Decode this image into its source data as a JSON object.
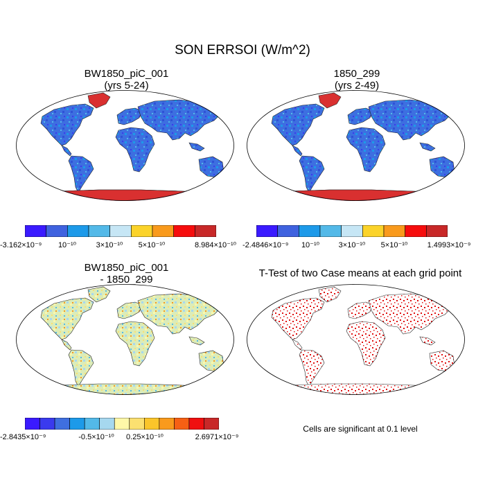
{
  "title": "SON ERRSOI (W/m^2)",
  "panels": [
    {
      "id": "case1",
      "title_line1": "BW1850_piC_001",
      "title_line2": "(yrs 5-24)",
      "colorbar_colors": [
        "#3a1aff",
        "#3f62df",
        "#1d9ae9",
        "#53b9e8",
        "#c6e6f5",
        "#fbd32a",
        "#f99a1c",
        "#f60d0d",
        "#c82828"
      ],
      "colorbar_labels": [
        "-3.162×10⁻⁹",
        "10⁻¹⁰",
        "3×10⁻¹⁰",
        "5×10⁻¹⁰",
        "8.984×10⁻¹⁰"
      ],
      "land_color": "#3d6fe0",
      "ice_color": "#d93030"
    },
    {
      "id": "case2",
      "title_line1": "1850_299",
      "title_line2": "(yrs 2-49)",
      "colorbar_colors": [
        "#3a1aff",
        "#3f62df",
        "#1d9ae9",
        "#53b9e8",
        "#c6e6f5",
        "#fbd32a",
        "#f99a1c",
        "#f60d0d",
        "#c82828"
      ],
      "colorbar_labels": [
        "-2.4846×10⁻⁹",
        "10⁻¹⁰",
        "3×10⁻¹⁰",
        "5×10⁻¹⁰",
        "1.4993×10⁻⁹"
      ],
      "land_color": "#3d6fe0",
      "ice_color": "#d93030"
    },
    {
      "id": "diff",
      "title_line1": "BW1850_piC_001",
      "title_line2": "- 1850_299",
      "colorbar_colors": [
        "#3a1aff",
        "#3a3aee",
        "#3f6fe0",
        "#1d9ae9",
        "#53b9e8",
        "#a6d8ef",
        "#fff8a8",
        "#fbe070",
        "#fbc52a",
        "#f99a1c",
        "#f66014",
        "#f01010",
        "#c82828"
      ],
      "colorbar_labels": [
        "-2.8435×10⁻⁹",
        "-0.5×10⁻¹⁰",
        "0.25×10⁻¹⁰",
        "2.6971×10⁻⁹"
      ],
      "land_color": "#dcecb8"
    },
    {
      "id": "ttest",
      "title_line1": "T-Test of two Case means at each grid point",
      "note": "Cells are significant at 0.1 level",
      "marker_color": "#e01010"
    }
  ],
  "chart_data": [
    {
      "type": "heatmap",
      "title": "BW1850_piC_001 (yrs 5-24)",
      "variable": "ERRSOI",
      "season": "SON",
      "units": "W/m^2",
      "range": [
        -3.162e-09,
        8.984e-10
      ],
      "tick_labels": [
        "-3.162×10⁻⁹",
        "10⁻¹⁰",
        "3×10⁻¹⁰",
        "5×10⁻¹⁰",
        "8.984×10⁻¹⁰"
      ]
    },
    {
      "type": "heatmap",
      "title": "1850_299 (yrs 2-49)",
      "variable": "ERRSOI",
      "season": "SON",
      "units": "W/m^2",
      "range": [
        -2.4846e-09,
        1.4993e-09
      ],
      "tick_labels": [
        "-2.4846×10⁻⁹",
        "10⁻¹⁰",
        "3×10⁻¹⁰",
        "5×10⁻¹⁰",
        "1.4993×10⁻⁹"
      ]
    },
    {
      "type": "heatmap",
      "title": "BW1850_piC_001 - 1850_299",
      "variable": "ERRSOI difference",
      "units": "W/m^2",
      "range": [
        -2.8435e-09,
        2.6971e-09
      ],
      "tick_labels": [
        "-2.8435×10⁻⁹",
        "-0.5×10⁻¹⁰",
        "0.25×10⁻¹⁰",
        "2.6971×10⁻⁹"
      ]
    },
    {
      "type": "scatter",
      "title": "T-Test of two Case means at each grid point",
      "significance_level": 0.1,
      "note": "Cells are significant at 0.1 level"
    }
  ]
}
